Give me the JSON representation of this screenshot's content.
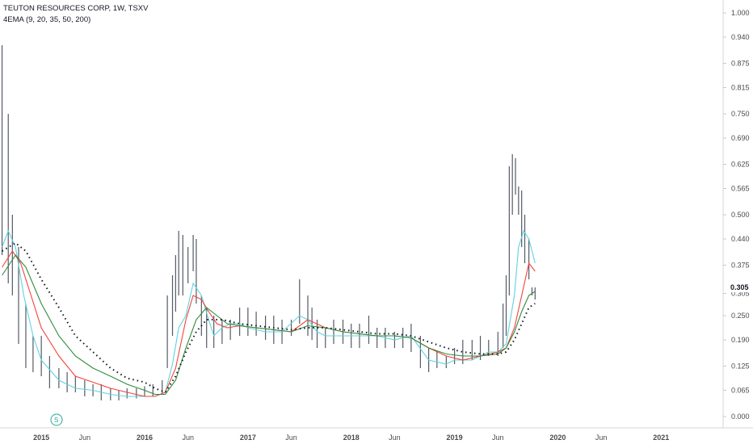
{
  "header": {
    "title": "TEUTON RESOURCES CORP, 1W, TSXV",
    "indicator": "4EMA (9, 20, 35, 50, 200)"
  },
  "price_badge": "0.305",
  "split_marker": "S",
  "colors": {
    "ema9": "#5fd3e0",
    "ema20": "#f4433c",
    "ema35": "#2e8b3a",
    "ema200": "#131722",
    "bars": "#555a66"
  },
  "chart_data": {
    "type": "line",
    "title": "TEUTON RESOURCES CORP, 1W, TSXV",
    "ylim": [
      -0.03,
      1.02
    ],
    "yticks": [
      "1.000",
      "0.940",
      "0.875",
      "0.815",
      "0.750",
      "0.690",
      "0.625",
      "0.565",
      "0.500",
      "0.440",
      "0.375",
      "0.305",
      "0.250",
      "0.190",
      "0.125",
      "0.065",
      "0.000"
    ],
    "ytick_values": [
      1.0,
      0.94,
      0.875,
      0.815,
      0.75,
      0.69,
      0.625,
      0.565,
      0.5,
      0.44,
      0.375,
      0.305,
      0.25,
      0.19,
      0.125,
      0.065,
      0.0
    ],
    "xlim": [
      2014.6,
      2021.6
    ],
    "xticks": [
      "2015",
      "Jun",
      "2016",
      "Jun",
      "2017",
      "Jun",
      "2018",
      "Jun",
      "2019",
      "Jun",
      "2020",
      "Jun",
      "2021"
    ],
    "xtick_values": [
      2015.0,
      2015.42,
      2016.0,
      2016.42,
      2017.0,
      2017.42,
      2018.0,
      2018.42,
      2019.0,
      2019.42,
      2020.0,
      2020.42,
      2021.0
    ],
    "price": {
      "name": "Weekly high-low range",
      "x": [
        2014.62,
        2014.68,
        2014.72,
        2014.78,
        2014.85,
        2014.92,
        2015.0,
        2015.08,
        2015.17,
        2015.25,
        2015.33,
        2015.42,
        2015.5,
        2015.58,
        2015.67,
        2015.75,
        2015.83,
        2015.92,
        2016.0,
        2016.08,
        2016.17,
        2016.22,
        2016.27,
        2016.3,
        2016.33,
        2016.37,
        2016.42,
        2016.47,
        2016.5,
        2016.55,
        2016.6,
        2016.67,
        2016.75,
        2016.83,
        2016.92,
        2017.0,
        2017.08,
        2017.17,
        2017.25,
        2017.33,
        2017.42,
        2017.5,
        2017.58,
        2017.62,
        2017.67,
        2017.75,
        2017.83,
        2017.92,
        2018.0,
        2018.08,
        2018.17,
        2018.25,
        2018.33,
        2018.42,
        2018.5,
        2018.58,
        2018.67,
        2018.75,
        2018.83,
        2018.92,
        2019.0,
        2019.08,
        2019.17,
        2019.25,
        2019.33,
        2019.42,
        2019.47,
        2019.5,
        2019.53,
        2019.56,
        2019.59,
        2019.62,
        2019.65,
        2019.68,
        2019.72,
        2019.75,
        2019.78
      ],
      "low": [
        0.4,
        0.33,
        0.3,
        0.18,
        0.12,
        0.11,
        0.1,
        0.07,
        0.07,
        0.06,
        0.06,
        0.05,
        0.05,
        0.04,
        0.04,
        0.04,
        0.045,
        0.045,
        0.05,
        0.05,
        0.055,
        0.12,
        0.2,
        0.26,
        0.3,
        0.3,
        0.33,
        0.36,
        0.28,
        0.2,
        0.17,
        0.17,
        0.18,
        0.19,
        0.2,
        0.2,
        0.2,
        0.19,
        0.18,
        0.18,
        0.2,
        0.23,
        0.2,
        0.19,
        0.17,
        0.17,
        0.18,
        0.18,
        0.17,
        0.17,
        0.18,
        0.17,
        0.17,
        0.17,
        0.17,
        0.16,
        0.12,
        0.11,
        0.12,
        0.12,
        0.13,
        0.13,
        0.14,
        0.14,
        0.15,
        0.15,
        0.17,
        0.2,
        0.3,
        0.5,
        0.55,
        0.5,
        0.42,
        0.38,
        0.34,
        0.3,
        0.29
      ],
      "high": [
        0.92,
        0.75,
        0.5,
        0.42,
        0.28,
        0.2,
        0.2,
        0.15,
        0.12,
        0.11,
        0.1,
        0.09,
        0.08,
        0.08,
        0.07,
        0.065,
        0.07,
        0.07,
        0.075,
        0.08,
        0.09,
        0.3,
        0.35,
        0.4,
        0.46,
        0.45,
        0.42,
        0.45,
        0.44,
        0.3,
        0.27,
        0.25,
        0.24,
        0.24,
        0.27,
        0.27,
        0.26,
        0.25,
        0.25,
        0.24,
        0.24,
        0.34,
        0.3,
        0.27,
        0.24,
        0.22,
        0.24,
        0.24,
        0.23,
        0.23,
        0.25,
        0.22,
        0.22,
        0.21,
        0.22,
        0.23,
        0.2,
        0.17,
        0.16,
        0.15,
        0.17,
        0.19,
        0.19,
        0.2,
        0.19,
        0.21,
        0.28,
        0.35,
        0.62,
        0.65,
        0.64,
        0.57,
        0.56,
        0.5,
        0.44,
        0.32,
        0.32
      ]
    },
    "series": [
      {
        "name": "EMA 9",
        "x": [
          2014.62,
          2014.68,
          2014.75,
          2014.83,
          2014.92,
          2015.0,
          2015.17,
          2015.33,
          2015.5,
          2015.67,
          2015.83,
          2016.0,
          2016.1,
          2016.2,
          2016.27,
          2016.33,
          2016.4,
          2016.47,
          2016.55,
          2016.62,
          2016.67,
          2016.75,
          2016.83,
          2016.92,
          2017.0,
          2017.17,
          2017.33,
          2017.5,
          2017.58,
          2017.67,
          2017.75,
          2017.92,
          2018.08,
          2018.25,
          2018.42,
          2018.58,
          2018.75,
          2018.92,
          2019.0,
          2019.17,
          2019.33,
          2019.42,
          2019.5,
          2019.58,
          2019.62,
          2019.67,
          2019.72,
          2019.78
        ],
        "values": [
          0.42,
          0.46,
          0.42,
          0.3,
          0.2,
          0.14,
          0.09,
          0.07,
          0.065,
          0.055,
          0.05,
          0.05,
          0.05,
          0.06,
          0.13,
          0.22,
          0.25,
          0.33,
          0.3,
          0.24,
          0.2,
          0.22,
          0.23,
          0.23,
          0.22,
          0.21,
          0.21,
          0.25,
          0.24,
          0.21,
          0.2,
          0.2,
          0.2,
          0.2,
          0.19,
          0.2,
          0.14,
          0.13,
          0.14,
          0.14,
          0.16,
          0.16,
          0.18,
          0.3,
          0.42,
          0.46,
          0.44,
          0.38
        ]
      },
      {
        "name": "EMA 20",
        "x": [
          2014.62,
          2014.72,
          2014.8,
          2014.9,
          2015.0,
          2015.17,
          2015.33,
          2015.5,
          2015.67,
          2015.83,
          2016.0,
          2016.1,
          2016.2,
          2016.3,
          2016.4,
          2016.47,
          2016.55,
          2016.62,
          2016.7,
          2016.8,
          2016.92,
          2017.08,
          2017.25,
          2017.42,
          2017.58,
          2017.75,
          2017.92,
          2018.08,
          2018.25,
          2018.42,
          2018.58,
          2018.75,
          2018.92,
          2019.08,
          2019.25,
          2019.42,
          2019.5,
          2019.58,
          2019.65,
          2019.72,
          2019.78
        ],
        "values": [
          0.37,
          0.41,
          0.38,
          0.3,
          0.22,
          0.15,
          0.1,
          0.085,
          0.07,
          0.06,
          0.05,
          0.05,
          0.06,
          0.12,
          0.24,
          0.3,
          0.29,
          0.26,
          0.23,
          0.22,
          0.225,
          0.22,
          0.215,
          0.21,
          0.24,
          0.22,
          0.21,
          0.205,
          0.2,
          0.2,
          0.195,
          0.17,
          0.15,
          0.14,
          0.15,
          0.16,
          0.17,
          0.22,
          0.3,
          0.38,
          0.36
        ]
      },
      {
        "name": "EMA 35",
        "x": [
          2014.62,
          2014.75,
          2014.85,
          2015.0,
          2015.17,
          2015.33,
          2015.5,
          2015.67,
          2015.83,
          2016.0,
          2016.1,
          2016.2,
          2016.3,
          2016.4,
          2016.5,
          2016.6,
          2016.7,
          2016.8,
          2016.92,
          2017.08,
          2017.25,
          2017.42,
          2017.58,
          2017.75,
          2017.92,
          2018.08,
          2018.25,
          2018.42,
          2018.58,
          2018.75,
          2018.92,
          2019.08,
          2019.25,
          2019.42,
          2019.5,
          2019.58,
          2019.65,
          2019.72,
          2019.78
        ],
        "values": [
          0.35,
          0.4,
          0.37,
          0.28,
          0.2,
          0.15,
          0.12,
          0.1,
          0.08,
          0.065,
          0.055,
          0.055,
          0.09,
          0.17,
          0.24,
          0.27,
          0.25,
          0.23,
          0.225,
          0.22,
          0.215,
          0.21,
          0.225,
          0.22,
          0.21,
          0.205,
          0.2,
          0.2,
          0.195,
          0.17,
          0.155,
          0.15,
          0.15,
          0.155,
          0.17,
          0.21,
          0.26,
          0.3,
          0.31
        ]
      },
      {
        "name": "EMA 200",
        "x": [
          2014.62,
          2014.75,
          2014.85,
          2015.0,
          2015.17,
          2015.33,
          2015.5,
          2015.67,
          2015.83,
          2016.0,
          2016.1,
          2016.2,
          2016.3,
          2016.4,
          2016.5,
          2016.6,
          2016.75,
          2016.92,
          2017.08,
          2017.25,
          2017.42,
          2017.58,
          2017.75,
          2017.92,
          2018.08,
          2018.25,
          2018.42,
          2018.58,
          2018.75,
          2018.92,
          2019.08,
          2019.25,
          2019.42,
          2019.5,
          2019.58,
          2019.65,
          2019.72,
          2019.78
        ],
        "values": [
          0.41,
          0.43,
          0.41,
          0.34,
          0.27,
          0.2,
          0.16,
          0.12,
          0.095,
          0.085,
          0.07,
          0.06,
          0.1,
          0.16,
          0.21,
          0.24,
          0.24,
          0.23,
          0.225,
          0.22,
          0.215,
          0.22,
          0.22,
          0.215,
          0.21,
          0.205,
          0.205,
          0.2,
          0.185,
          0.17,
          0.16,
          0.155,
          0.155,
          0.16,
          0.19,
          0.23,
          0.27,
          0.28
        ]
      }
    ]
  }
}
